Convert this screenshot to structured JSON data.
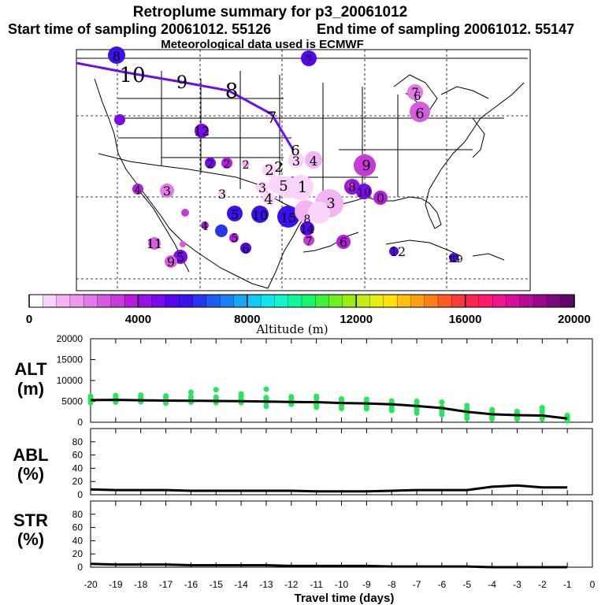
{
  "title": {
    "line1": "Retroplume summary for p3_20061012",
    "start": "Start time of sampling 20061012. 55126",
    "end": "End time of sampling 20061012. 55147",
    "met": "Meteorological data used is ECMWF"
  },
  "colorbar": {
    "xlabel": "Altitude (m)",
    "ticks": [
      "0",
      "4000",
      "8000",
      "12000",
      "16000",
      "20000"
    ],
    "colors": [
      "#ffffff",
      "#fbd4fb",
      "#f4b4f4",
      "#ee99ee",
      "#e47ae8",
      "#d85ae0",
      "#c83ad8",
      "#b61ce0",
      "#9a10e6",
      "#7a08ec",
      "#5606ee",
      "#3a10f0",
      "#2636f0",
      "#1e5cf2",
      "#1a80f4",
      "#16a6f6",
      "#12c8f8",
      "#10e6f0",
      "#10f6c8",
      "#12f69a",
      "#18f46e",
      "#3cf23c",
      "#6ef020",
      "#9aee10",
      "#c4ee10",
      "#e8ee10",
      "#ffe208",
      "#ffc00a",
      "#ffa010",
      "#ff7e18",
      "#ff5a24",
      "#ff3a3a",
      "#ff2450",
      "#ff1a6e",
      "#ee148a",
      "#d80e9a",
      "#b60c94",
      "#960a8a",
      "#780a7c",
      "#5c0864"
    ]
  },
  "map_labels": [
    {
      "t": "10",
      "kind": "track"
    },
    {
      "t": "9",
      "kind": "track"
    },
    {
      "t": "8",
      "kind": "track"
    },
    {
      "t": "7",
      "kind": "track"
    },
    {
      "t": "6",
      "kind": "track"
    },
    {
      "t": "8",
      "kind": "dot"
    },
    {
      "t": "7",
      "kind": "dot"
    },
    {
      "t": "7",
      "kind": "dot"
    },
    {
      "t": "6",
      "kind": "dot"
    },
    {
      "t": "6",
      "kind": "dot"
    },
    {
      "t": "12",
      "kind": "dot"
    },
    {
      "t": "2",
      "kind": "dot"
    },
    {
      "t": "2",
      "kind": "dot"
    },
    {
      "t": "2",
      "kind": "dot"
    },
    {
      "t": "2",
      "kind": "dot"
    },
    {
      "t": "2",
      "kind": "dot"
    },
    {
      "t": "3",
      "kind": "dot"
    },
    {
      "t": "4",
      "kind": "dot"
    },
    {
      "t": "9",
      "kind": "dot"
    },
    {
      "t": "4",
      "kind": "dot"
    },
    {
      "t": "3",
      "kind": "dot"
    },
    {
      "t": "3",
      "kind": "dot"
    },
    {
      "t": "3",
      "kind": "dot"
    },
    {
      "t": "5",
      "kind": "dot"
    },
    {
      "t": "1",
      "kind": "dot"
    },
    {
      "t": "4",
      "kind": "dot"
    },
    {
      "t": "8",
      "kind": "dot"
    },
    {
      "t": "10",
      "kind": "dot"
    },
    {
      "t": "0",
      "kind": "dot"
    },
    {
      "t": "5",
      "kind": "dot"
    },
    {
      "t": "3",
      "kind": "dot"
    },
    {
      "t": "4",
      "kind": "dot"
    },
    {
      "t": "10",
      "kind": "dot"
    },
    {
      "t": "15",
      "kind": "dot"
    },
    {
      "t": "14",
      "kind": "dot"
    },
    {
      "t": "7",
      "kind": "dot"
    },
    {
      "t": "6",
      "kind": "dot"
    },
    {
      "t": "11",
      "kind": "dot"
    },
    {
      "t": "5",
      "kind": "dot"
    },
    {
      "t": "9",
      "kind": "dot"
    },
    {
      "t": "5",
      "kind": "dot"
    },
    {
      "t": "8",
      "kind": "dot"
    },
    {
      "t": "6",
      "kind": "dot"
    },
    {
      "t": "12",
      "kind": "dot"
    },
    {
      "t": "13",
      "kind": "dot"
    },
    {
      "t": "19",
      "kind": "dot"
    }
  ],
  "chart_data": [
    {
      "type": "scatter+line",
      "panel": "ALT",
      "ylabel": "ALT\n(m)",
      "ylabel_line1": "ALT",
      "ylabel_line2": "(m)",
      "ylim": [
        0,
        20000
      ],
      "yticks": [
        "0",
        "5000",
        "10000",
        "15000",
        "20000"
      ],
      "x": [
        -20,
        -19,
        -18,
        -17,
        -16,
        -15,
        -14,
        -13,
        -12,
        -11,
        -10,
        -9,
        -8,
        -7,
        -6,
        -5,
        -4,
        -3,
        -2,
        -1
      ],
      "mean_line_x": [
        -20,
        -19,
        -18,
        -17,
        -16,
        -15,
        -14,
        -13,
        -12,
        -11,
        -10,
        -9,
        -8,
        -7,
        -6,
        -5,
        -4,
        -3,
        -2,
        -1
      ],
      "mean_line_y": [
        5300,
        5350,
        5250,
        5200,
        5150,
        5100,
        5050,
        4950,
        4850,
        4800,
        4600,
        4500,
        4300,
        3900,
        3400,
        2500,
        1900,
        1700,
        1600,
        900
      ],
      "points": [
        {
          "x": -20,
          "y": [
            6200,
            5800,
            5400,
            5000,
            4700
          ]
        },
        {
          "x": -19,
          "y": [
            6400,
            5900,
            5500,
            5100,
            4800
          ]
        },
        {
          "x": -18,
          "y": [
            6500,
            6000,
            5600,
            5200,
            4900
          ]
        },
        {
          "x": -17,
          "y": [
            6300,
            5800,
            5400,
            5000,
            4600
          ]
        },
        {
          "x": -16,
          "y": [
            7200,
            6100,
            5600,
            5200,
            4800
          ]
        },
        {
          "x": -15,
          "y": [
            7800,
            6000,
            5500,
            5100,
            4700
          ]
        },
        {
          "x": -14,
          "y": [
            6800,
            6200,
            5500,
            5000,
            4700
          ]
        },
        {
          "x": -13,
          "y": [
            7900,
            5900,
            5400,
            4800,
            3800
          ]
        },
        {
          "x": -12,
          "y": [
            6100,
            5600,
            5100,
            4600,
            4300
          ]
        },
        {
          "x": -11,
          "y": [
            6200,
            5600,
            4800,
            4200,
            3600
          ]
        },
        {
          "x": -10,
          "y": [
            5600,
            5200,
            4600,
            4000,
            3300
          ]
        },
        {
          "x": -9,
          "y": [
            5500,
            4800,
            4300,
            3800,
            3200
          ]
        },
        {
          "x": -8,
          "y": [
            5100,
            4600,
            4000,
            3500,
            2800
          ]
        },
        {
          "x": -7,
          "y": [
            5000,
            4200,
            3600,
            3000,
            2200
          ]
        },
        {
          "x": -6,
          "y": [
            4800,
            3600,
            3000,
            2400,
            1800
          ]
        },
        {
          "x": -5,
          "y": [
            4000,
            3200,
            2400,
            1800,
            900
          ]
        },
        {
          "x": -4,
          "y": [
            3000,
            2400,
            1600,
            1100,
            800
          ]
        },
        {
          "x": -3,
          "y": [
            2600,
            2000,
            1500,
            1100,
            800
          ]
        },
        {
          "x": -2,
          "y": [
            3500,
            2700,
            1900,
            1400,
            800
          ]
        },
        {
          "x": -1,
          "y": [
            1600,
            1100,
            800,
            500,
            300
          ]
        }
      ]
    },
    {
      "type": "line",
      "panel": "ABL",
      "ylabel_line1": "ABL",
      "ylabel_line2": "(%)",
      "ylim": [
        0,
        100
      ],
      "yticks": [
        "0",
        "20",
        "40",
        "60",
        "80"
      ],
      "x": [
        -20,
        -19,
        -18,
        -17,
        -16,
        -15,
        -14,
        -13,
        -12,
        -11,
        -10,
        -9,
        -8,
        -7,
        -6,
        -5,
        -4,
        -3,
        -2,
        -1
      ],
      "y": [
        8,
        7,
        7,
        7,
        6,
        6,
        6,
        6,
        6,
        5,
        5,
        5,
        6,
        7,
        7,
        7,
        12,
        14,
        11,
        11
      ]
    },
    {
      "type": "line",
      "panel": "STR",
      "ylabel_line1": "STR",
      "ylabel_line2": "(%)",
      "ylim": [
        0,
        100
      ],
      "yticks": [
        "0",
        "20",
        "40",
        "60",
        "80"
      ],
      "x": [
        -20,
        -19,
        -18,
        -17,
        -16,
        -15,
        -14,
        -13,
        -12,
        -11,
        -10,
        -9,
        -8,
        -7,
        -6,
        -5,
        -4,
        -3,
        -2,
        -1
      ],
      "y": [
        5,
        4,
        4,
        4,
        3,
        3,
        3,
        3,
        2,
        2,
        2,
        2,
        1,
        1,
        1,
        1,
        0,
        0,
        0,
        0
      ]
    }
  ],
  "xaxis": {
    "label": "Travel time (days)",
    "ticks": [
      "-20",
      "-19",
      "-18",
      "-17",
      "-16",
      "-15",
      "-14",
      "-13",
      "-12",
      "-11",
      "-10",
      "-9",
      "-8",
      "-7",
      "-6",
      "-5",
      "-4",
      "-3",
      "-2",
      "-1",
      "0"
    ]
  }
}
